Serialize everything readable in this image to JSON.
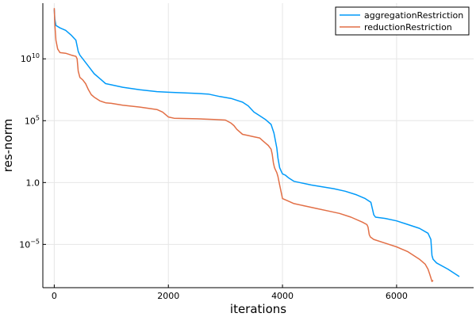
{
  "chart_data": {
    "type": "line",
    "xlabel": "iterations",
    "ylabel": "res-norm",
    "xlim": [
      -200,
      7350
    ],
    "ylim_log10": [
      -8.5,
      14.5
    ],
    "y_scale": "log",
    "grid": true,
    "legend_position": "top-right",
    "x_ticks": [
      0,
      2000,
      4000,
      6000
    ],
    "x_tick_labels": [
      "0",
      "2000",
      "4000",
      "6000"
    ],
    "y_ticks_log10": [
      10,
      5,
      0,
      -5
    ],
    "y_tick_labels": [
      {
        "base": "10",
        "exp": "10"
      },
      {
        "base": "10",
        "exp": "5"
      },
      {
        "base": "1.0",
        "exp": ""
      },
      {
        "base": "10",
        "exp": "−5"
      }
    ],
    "series": [
      {
        "name": "aggregationRestriction",
        "color": "#009af9",
        "x": [
          0,
          10,
          30,
          100,
          200,
          300,
          380,
          420,
          450,
          500,
          600,
          700,
          800,
          900,
          1000,
          1200,
          1500,
          1800,
          2000,
          2500,
          2700,
          2900,
          3100,
          3300,
          3400,
          3500,
          3600,
          3700,
          3800,
          3850,
          3900,
          3920,
          3950,
          3980,
          4000,
          4050,
          4100,
          4200,
          4300,
          4500,
          4700,
          4900,
          5100,
          5300,
          5450,
          5550,
          5580,
          5600,
          5630,
          5800,
          6000,
          6200,
          6400,
          6550,
          6600,
          6620,
          6640,
          6700,
          6900,
          7100
        ],
        "log10_y": [
          14.0,
          13.2,
          12.7,
          12.5,
          12.3,
          11.9,
          11.5,
          10.6,
          10.3,
          10.0,
          9.4,
          8.8,
          8.4,
          8.0,
          7.9,
          7.7,
          7.5,
          7.35,
          7.3,
          7.2,
          7.15,
          6.95,
          6.8,
          6.5,
          6.2,
          5.7,
          5.4,
          5.1,
          4.7,
          4.0,
          2.8,
          2.0,
          1.2,
          0.9,
          0.7,
          0.6,
          0.4,
          0.1,
          0.0,
          -0.2,
          -0.35,
          -0.5,
          -0.7,
          -1.0,
          -1.3,
          -1.6,
          -2.2,
          -2.6,
          -2.8,
          -2.9,
          -3.1,
          -3.4,
          -3.7,
          -4.1,
          -4.6,
          -5.9,
          -6.2,
          -6.5,
          -7.0,
          -7.6
        ]
      },
      {
        "name": "reductionRestriction",
        "color": "#e26f46",
        "x": [
          0,
          10,
          30,
          60,
          100,
          200,
          300,
          380,
          400,
          420,
          450,
          500,
          550,
          600,
          650,
          700,
          800,
          900,
          1000,
          1200,
          1500,
          1800,
          1900,
          2000,
          2100,
          2500,
          2800,
          3000,
          3100,
          3150,
          3200,
          3300,
          3400,
          3500,
          3600,
          3650,
          3700,
          3750,
          3800,
          3820,
          3840,
          3860,
          3880,
          3900,
          3920,
          3950,
          4000,
          4100,
          4200,
          4400,
          4600,
          4800,
          5000,
          5200,
          5400,
          5480,
          5500,
          5520,
          5540,
          5600,
          5800,
          6000,
          6200,
          6400,
          6500,
          6550,
          6580,
          6600,
          6620,
          6640
        ],
        "log10_y": [
          14.1,
          12.8,
          11.5,
          10.8,
          10.5,
          10.45,
          10.3,
          10.2,
          10.0,
          9.0,
          8.5,
          8.3,
          8.0,
          7.5,
          7.1,
          6.9,
          6.6,
          6.45,
          6.4,
          6.25,
          6.1,
          5.9,
          5.7,
          5.3,
          5.2,
          5.15,
          5.1,
          5.05,
          4.8,
          4.6,
          4.3,
          3.9,
          3.8,
          3.7,
          3.6,
          3.4,
          3.2,
          3.0,
          2.7,
          2.3,
          1.6,
          1.2,
          1.0,
          0.8,
          0.5,
          -0.2,
          -1.3,
          -1.5,
          -1.7,
          -1.9,
          -2.1,
          -2.3,
          -2.5,
          -2.8,
          -3.2,
          -3.4,
          -3.6,
          -4.2,
          -4.4,
          -4.6,
          -4.9,
          -5.2,
          -5.6,
          -6.2,
          -6.6,
          -7.0,
          -7.4,
          -7.7,
          -8.0,
          -7.9
        ]
      }
    ]
  }
}
